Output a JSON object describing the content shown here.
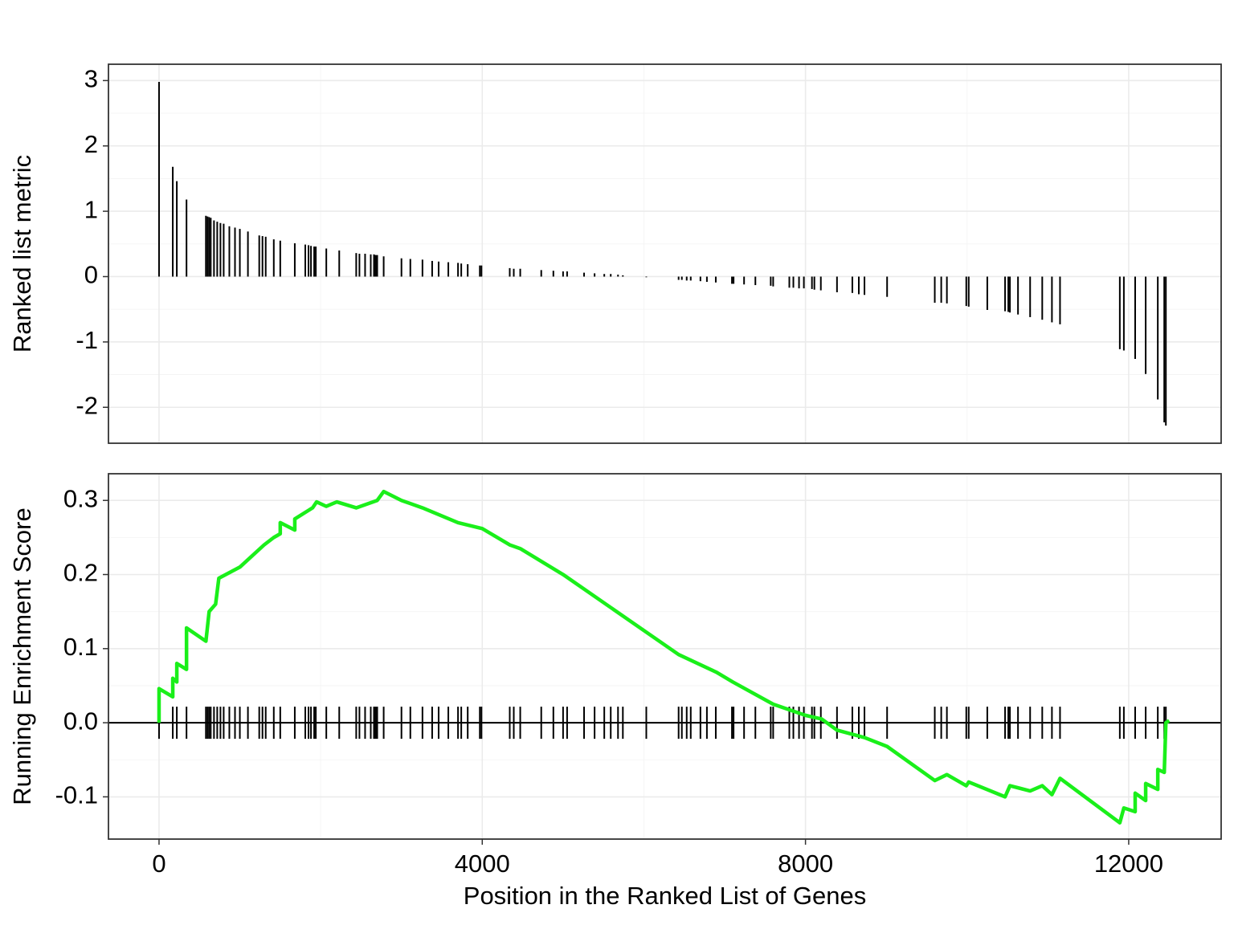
{
  "chart_data": [
    {
      "type": "bar",
      "y_label": "Ranked list metric",
      "color": "#000000",
      "x": [
        0,
        170,
        220,
        340,
        580,
        600,
        620,
        640,
        680,
        720,
        760,
        800,
        870,
        940,
        1000,
        1100,
        1240,
        1280,
        1320,
        1420,
        1500,
        1680,
        1810,
        1850,
        1880,
        1920,
        1940,
        2070,
        2230,
        2440,
        2480,
        2550,
        2620,
        2660,
        2680,
        2700,
        2780,
        3000,
        3110,
        3260,
        3380,
        3460,
        3580,
        3700,
        3740,
        3820,
        3970,
        3990,
        4340,
        4390,
        4470,
        4730,
        4880,
        5000,
        5050,
        5260,
        5390,
        5510,
        5590,
        5680,
        5740,
        6030,
        6430,
        6470,
        6530,
        6580,
        6700,
        6780,
        6890,
        7090,
        7110,
        7240,
        7380,
        7570,
        7600,
        7800,
        7850,
        7920,
        7980,
        8080,
        8110,
        8190,
        8390,
        8580,
        8660,
        8730,
        9010,
        9600,
        9680,
        9750,
        9990,
        10020,
        10250,
        10470,
        10510,
        10530,
        10630,
        10780,
        10930,
        11050,
        11150,
        11890,
        11940,
        12080,
        12210,
        12360,
        12440,
        12460
      ],
      "values": [
        2.98,
        1.68,
        1.46,
        1.18,
        0.93,
        0.92,
        0.91,
        0.9,
        0.86,
        0.84,
        0.82,
        0.81,
        0.77,
        0.75,
        0.73,
        0.69,
        0.63,
        0.62,
        0.61,
        0.57,
        0.55,
        0.51,
        0.49,
        0.48,
        0.47,
        0.46,
        0.46,
        0.43,
        0.4,
        0.36,
        0.35,
        0.35,
        0.34,
        0.34,
        0.33,
        0.33,
        0.31,
        0.28,
        0.27,
        0.26,
        0.24,
        0.23,
        0.22,
        0.21,
        0.2,
        0.19,
        0.17,
        0.17,
        0.13,
        0.12,
        0.12,
        0.1,
        0.09,
        0.08,
        0.08,
        0.06,
        0.05,
        0.04,
        0.04,
        0.03,
        0.02,
        -0.01,
        -0.05,
        -0.05,
        -0.06,
        -0.06,
        -0.07,
        -0.08,
        -0.09,
        -0.11,
        -0.11,
        -0.12,
        -0.13,
        -0.14,
        -0.15,
        -0.17,
        -0.17,
        -0.18,
        -0.18,
        -0.19,
        -0.2,
        -0.21,
        -0.24,
        -0.25,
        -0.27,
        -0.28,
        -0.31,
        -0.4,
        -0.4,
        -0.41,
        -0.45,
        -0.46,
        -0.51,
        -0.53,
        -0.54,
        -0.55,
        -0.58,
        -0.62,
        -0.66,
        -0.7,
        -0.73,
        -1.11,
        -1.13,
        -1.26,
        -1.49,
        -1.88,
        -2.23,
        -2.28
      ],
      "xlim": [
        -626,
        13144
      ],
      "xticks": [
        0,
        4000,
        8000,
        12000
      ],
      "ylim": [
        -2.55,
        3.25
      ],
      "yticks": [
        -2,
        -1,
        0,
        1,
        2,
        3
      ],
      "grid": true
    },
    {
      "type": "line",
      "y_label": "Running Enrichment Score",
      "x_label": "Position in the Ranked List of Genes",
      "color": "#1aef1a",
      "x": [
        0,
        0,
        170,
        170,
        220,
        220,
        340,
        340,
        580,
        620,
        700,
        740,
        1000,
        1100,
        1300,
        1420,
        1500,
        1500,
        1680,
        1680,
        1900,
        1950,
        2070,
        2200,
        2440,
        2700,
        2780,
        3000,
        3260,
        3700,
        4000,
        4340,
        4470,
        5000,
        6430,
        6900,
        7100,
        7600,
        8000,
        8200,
        8390,
        8730,
        9010,
        9600,
        9750,
        9990,
        10020,
        10470,
        10530,
        10780,
        10930,
        11050,
        11150,
        11890,
        11940,
        12080,
        12080,
        12210,
        12210,
        12360,
        12360,
        12440,
        12460,
        12500
      ],
      "values": [
        0.0,
        0.046,
        0.035,
        0.06,
        0.055,
        0.08,
        0.072,
        0.128,
        0.11,
        0.15,
        0.16,
        0.195,
        0.21,
        0.22,
        0.24,
        0.25,
        0.255,
        0.27,
        0.26,
        0.275,
        0.29,
        0.298,
        0.292,
        0.298,
        0.29,
        0.3,
        0.312,
        0.3,
        0.29,
        0.27,
        0.262,
        0.24,
        0.235,
        0.2,
        0.092,
        0.068,
        0.055,
        0.025,
        0.01,
        0.005,
        -0.01,
        -0.02,
        -0.032,
        -0.078,
        -0.07,
        -0.085,
        -0.08,
        -0.1,
        -0.085,
        -0.092,
        -0.085,
        -0.097,
        -0.075,
        -0.135,
        -0.115,
        -0.12,
        -0.095,
        -0.105,
        -0.082,
        -0.09,
        -0.063,
        -0.067,
        0.0,
        0.003
      ],
      "xlim": [
        -626,
        13144
      ],
      "xticks": [
        0,
        4000,
        8000,
        12000
      ],
      "ylim": [
        -0.157,
        0.336
      ],
      "yticks": [
        -0.1,
        {
          "value": 0,
          "label": "0.0"
        },
        0.1,
        0.2,
        0.3
      ],
      "grid": true
    }
  ]
}
